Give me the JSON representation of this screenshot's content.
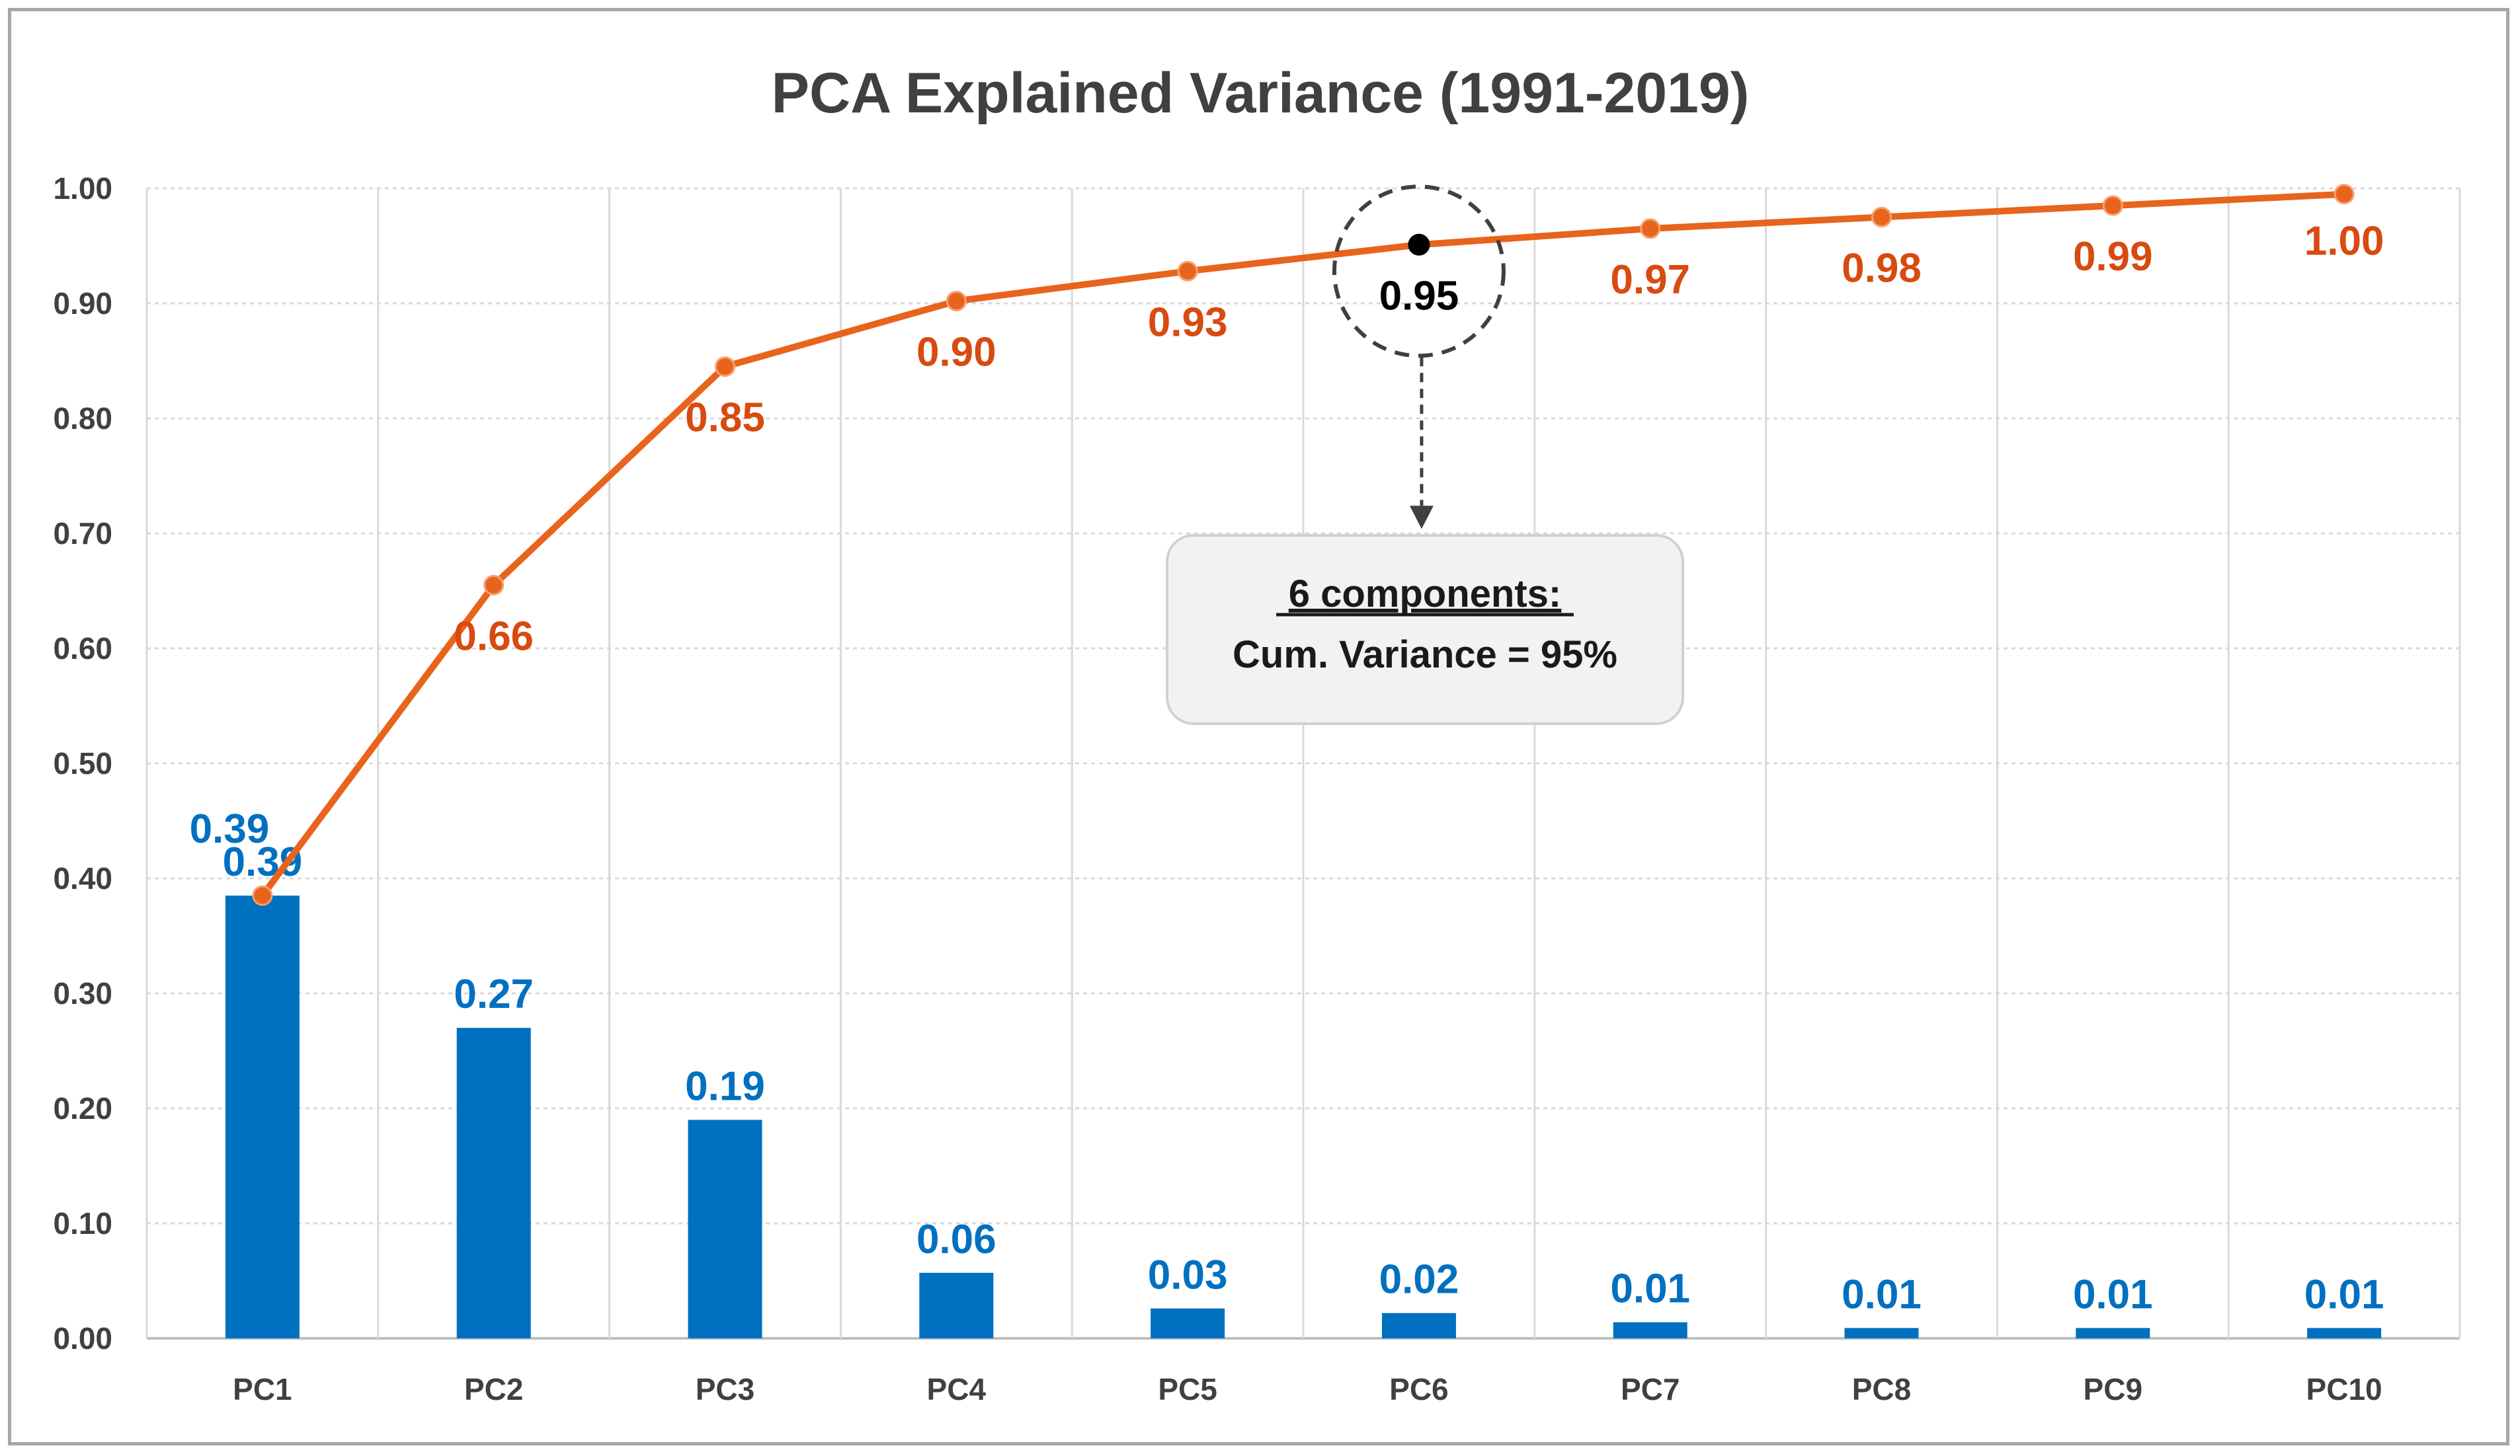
{
  "chart_data": {
    "type": "bar",
    "title": "PCA Explained Variance (1991-2019)",
    "categories": [
      "PC1",
      "PC2",
      "PC3",
      "PC4",
      "PC5",
      "PC6",
      "PC7",
      "PC8",
      "PC9",
      "PC10"
    ],
    "xlabel": "",
    "ylabel": "",
    "ylim": [
      0,
      1.0
    ],
    "yticks": [
      "0.00",
      "0.10",
      "0.20",
      "0.30",
      "0.40",
      "0.50",
      "0.60",
      "0.70",
      "0.80",
      "0.90",
      "1.00"
    ],
    "grid": true,
    "series": [
      {
        "name": "Explained Variance",
        "type": "bar",
        "color": "#0070c0",
        "values": [
          0.385,
          0.27,
          0.19,
          0.057,
          0.026,
          0.022,
          0.014,
          0.009,
          0.009,
          0.009
        ],
        "labels": [
          "0.39",
          "0.27",
          "0.19",
          "0.06",
          "0.03",
          "0.02",
          "0.01",
          "0.01",
          "0.01",
          "0.01"
        ]
      },
      {
        "name": "Cumulative Variance",
        "type": "line",
        "color": "#e8641c",
        "label_color": "#d84a10",
        "values": [
          0.385,
          0.655,
          0.845,
          0.902,
          0.928,
          0.951,
          0.965,
          0.975,
          0.985,
          0.995
        ],
        "labels": [
          "0.39",
          "0.66",
          "0.85",
          "0.90",
          "0.93",
          "0.95",
          "0.97",
          "0.98",
          "0.99",
          "1.00"
        ]
      }
    ],
    "annotation": {
      "highlight_index": 5,
      "highlight_label": "0.95",
      "title": "6 components:",
      "text": "Cum. Variance = 95%"
    }
  }
}
